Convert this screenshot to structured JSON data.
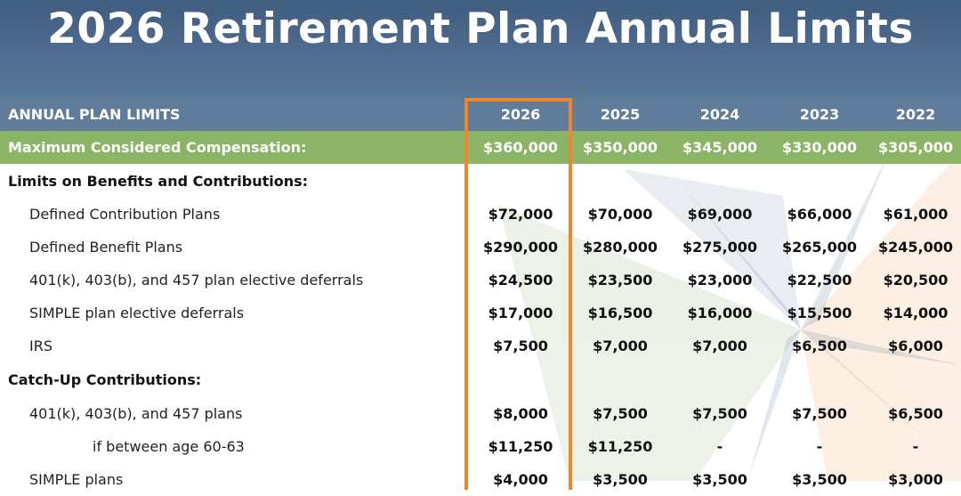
{
  "title": "2026 Retirement Plan Annual Limits",
  "colors": {
    "banner": "#4f6c8e",
    "header_row": "#5f7c9b",
    "comp_row": "#8cb467",
    "highlight": "#f0862a"
  },
  "table": {
    "header": {
      "label": "ANNUAL PLAN LIMITS",
      "years": [
        "2026",
        "2025",
        "2024",
        "2023",
        "2022"
      ]
    },
    "comp": {
      "label": "Maximum Considered Compensation:",
      "values": [
        "$360,000",
        "$350,000",
        "$345,000",
        "$330,000",
        "$305,000"
      ]
    },
    "sections": [
      {
        "label": "Limits on Benefits and Contributions:",
        "items": [
          {
            "label": "Defined Contribution Plans",
            "values": [
              "$72,000",
              "$70,000",
              "$69,000",
              "$66,000",
              "$61,000"
            ]
          },
          {
            "label": "Defined Benefit Plans",
            "values": [
              "$290,000",
              "$280,000",
              "$275,000",
              "$265,000",
              "$245,000"
            ]
          },
          {
            "label": "401(k), 403(b), and 457 plan elective deferrals",
            "values": [
              "$24,500",
              "$23,500",
              "$23,000",
              "$22,500",
              "$20,500"
            ]
          },
          {
            "label": "SIMPLE plan elective deferrals",
            "values": [
              "$17,000",
              "$16,500",
              "$16,000",
              "$15,500",
              "$14,000"
            ]
          },
          {
            "label": "IRS",
            "values": [
              "$7,500",
              "$7,000",
              "$7,000",
              "$6,500",
              "$6,000"
            ]
          }
        ]
      },
      {
        "label": "Catch-Up Contributions:",
        "items": [
          {
            "label": "401(k), 403(b), and 457 plans",
            "values": [
              "$8,000",
              "$7,500",
              "$7,500",
              "$7,500",
              "$6,500"
            ]
          },
          {
            "label": "if between age 60-63",
            "values": [
              "$11,250",
              "$11,250",
              "-",
              "-",
              "-"
            ]
          },
          {
            "label": "SIMPLE plans",
            "values": [
              "$4,000",
              "$3,500",
              "$3,500",
              "$3,500",
              "$3,000"
            ]
          }
        ]
      }
    ]
  }
}
